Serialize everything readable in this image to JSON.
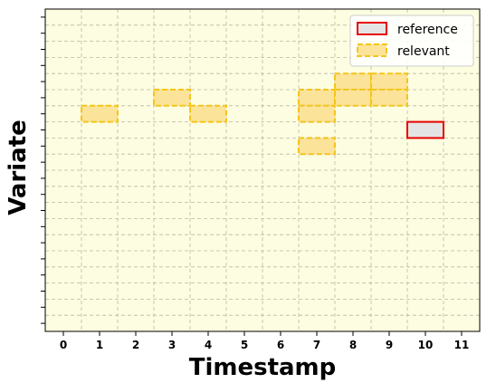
{
  "chart_data": {
    "type": "heatmap",
    "title": "",
    "xlabel": "Timestamp",
    "ylabel": "Variate",
    "x_ticks": [
      0,
      1,
      2,
      3,
      4,
      5,
      6,
      7,
      8,
      9,
      10,
      11
    ],
    "x_range": [
      -0.5,
      11.5
    ],
    "y_range": [
      -0.5,
      19.5
    ],
    "y_tick_count": 20,
    "grid": true,
    "legend_position": "top-right",
    "colors": {
      "background": "#fdfde1",
      "grid": "#b8b8a8",
      "reference_fill": "#e4e4e4",
      "reference_edge": "#e60000",
      "relevant_fill": "#fbe39a",
      "relevant_edge": "#f5c518"
    },
    "legend": [
      {
        "label": "reference",
        "style": "reference"
      },
      {
        "label": "relevant",
        "style": "relevant"
      }
    ],
    "series": [
      {
        "name": "reference",
        "cells": [
          {
            "x": 10,
            "y": 12
          }
        ]
      },
      {
        "name": "relevant",
        "cells": [
          {
            "x": 1,
            "y": 13
          },
          {
            "x": 3,
            "y": 14
          },
          {
            "x": 4,
            "y": 13
          },
          {
            "x": 7,
            "y": 14
          },
          {
            "x": 7,
            "y": 13
          },
          {
            "x": 7,
            "y": 11
          },
          {
            "x": 8,
            "y": 15
          },
          {
            "x": 8,
            "y": 14
          },
          {
            "x": 9,
            "y": 15
          },
          {
            "x": 9,
            "y": 14
          }
        ]
      }
    ]
  }
}
